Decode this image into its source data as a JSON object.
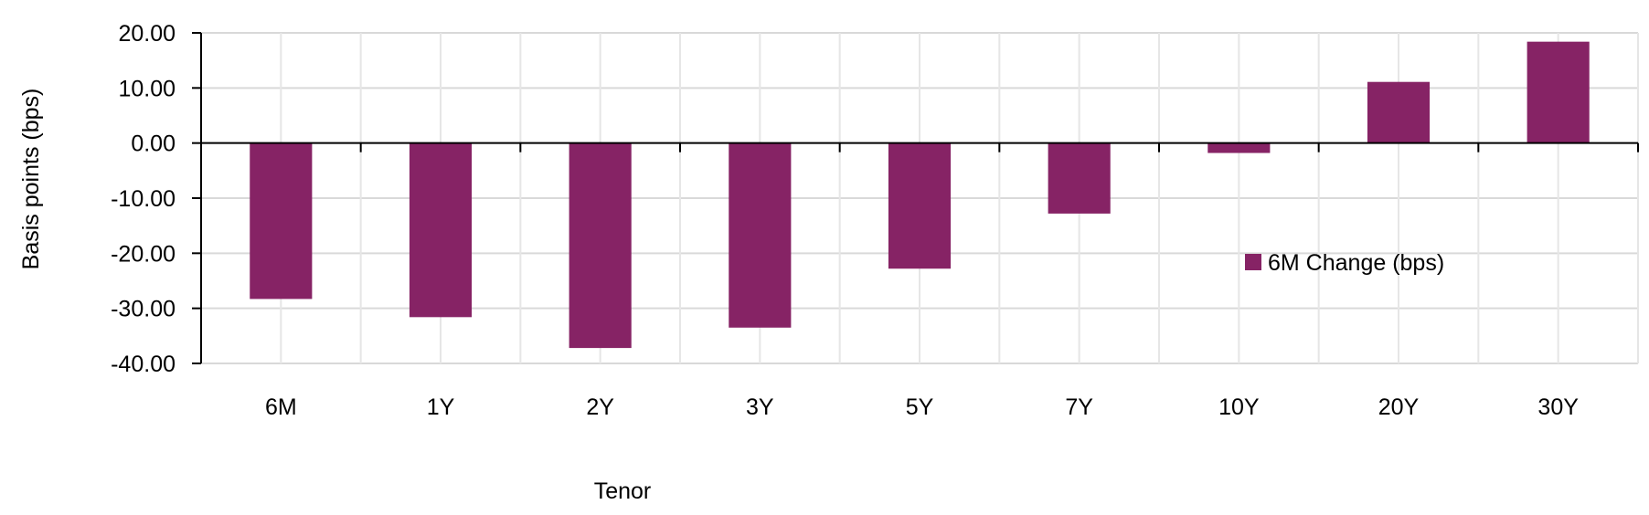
{
  "chart_data": {
    "type": "bar",
    "title": "",
    "xlabel": "Tenor",
    "ylabel": "Basis points (bps)",
    "ylim": [
      -40,
      20
    ],
    "yticks": [
      "20.00",
      "10.00",
      "0.00",
      "-10.00",
      "-20.00",
      "-30.00",
      "-40.00"
    ],
    "categories": [
      "6M",
      "1Y",
      "2Y",
      "3Y",
      "5Y",
      "7Y",
      "10Y",
      "20Y",
      "30Y"
    ],
    "series": [
      {
        "name": "6M Change (bps)",
        "color": "#862365",
        "values": [
          -28.3,
          -31.6,
          -37.2,
          -33.5,
          -22.8,
          -12.8,
          -1.8,
          11.1,
          18.4
        ]
      }
    ],
    "legend_position": "center-right",
    "grid": true
  }
}
